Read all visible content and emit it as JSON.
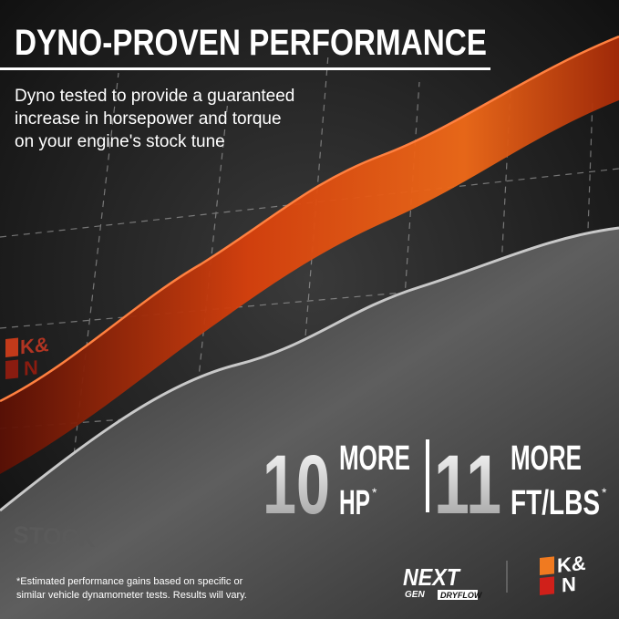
{
  "header": {
    "title": "DYNO-PROVEN PERFORMANCE",
    "subtitle_lines": [
      "Dyno tested to provide a guaranteed",
      "increase in horsepower and torque",
      "on your engine's stock tune"
    ]
  },
  "side_logo": {
    "top": "K&",
    "bottom": "N"
  },
  "stats": [
    {
      "number": 10,
      "word": "MORE",
      "unit": "HP",
      "mark": "*"
    },
    {
      "number": 11,
      "word": "MORE",
      "unit": "FT/LBS",
      "mark": "*"
    }
  ],
  "stock_label": "STOCK",
  "footnote_lines": [
    "*Estimated performance gains based on specific or",
    "similar vehicle dynamometer tests. Results will vary."
  ],
  "logos": {
    "nextgen_top": "NEXT",
    "nextgen_gen": "GEN",
    "nextgen_sub": "DRYFLOW",
    "brand_top": "K&",
    "brand_bottom": "N"
  }
}
